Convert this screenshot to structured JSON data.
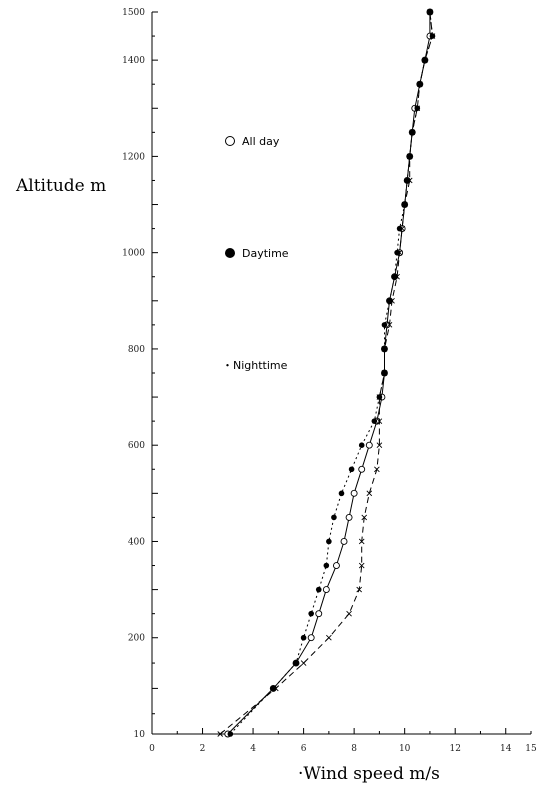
{
  "chart_data": {
    "type": "line",
    "xlabel": "·Wind speed m/s",
    "ylabel": "Altitude m",
    "xlim": [
      0,
      15
    ],
    "xticks": [
      0,
      2,
      4,
      6,
      8,
      10,
      12,
      14,
      15
    ],
    "yticks": [
      10,
      200,
      400,
      600,
      800,
      1000,
      1200,
      1400,
      1500
    ],
    "ytick_labels": [
      "10",
      "200",
      "400",
      "600",
      "800",
      "1000",
      "1200",
      "1400",
      "1500"
    ],
    "grid": false,
    "legend_position": "left",
    "series": [
      {
        "name": "All day",
        "marker": "open-circle",
        "line": "solid",
        "color": "#000000",
        "points": [
          [
            3.0,
            10
          ],
          [
            4.8,
            100
          ],
          [
            5.7,
            150
          ],
          [
            6.3,
            200
          ],
          [
            6.6,
            250
          ],
          [
            6.9,
            300
          ],
          [
            7.3,
            350
          ],
          [
            7.6,
            400
          ],
          [
            7.8,
            450
          ],
          [
            8.0,
            500
          ],
          [
            8.3,
            550
          ],
          [
            8.6,
            600
          ],
          [
            8.9,
            650
          ],
          [
            9.1,
            700
          ],
          [
            9.2,
            750
          ],
          [
            9.2,
            800
          ],
          [
            9.3,
            850
          ],
          [
            9.4,
            900
          ],
          [
            9.6,
            950
          ],
          [
            9.8,
            1000
          ],
          [
            9.9,
            1050
          ],
          [
            10.0,
            1100
          ],
          [
            10.1,
            1150
          ],
          [
            10.2,
            1200
          ],
          [
            10.3,
            1250
          ],
          [
            10.4,
            1300
          ],
          [
            10.6,
            1350
          ],
          [
            10.8,
            1400
          ],
          [
            11.0,
            1450
          ],
          [
            11.0,
            1500
          ]
        ]
      },
      {
        "name": "Daytime",
        "marker": "filled-circle",
        "line": "dotted",
        "color": "#000000",
        "points": [
          [
            3.1,
            10
          ],
          [
            4.8,
            100
          ],
          [
            5.7,
            150
          ],
          [
            6.0,
            200
          ],
          [
            6.3,
            250
          ],
          [
            6.6,
            300
          ],
          [
            6.9,
            350
          ],
          [
            7.0,
            400
          ],
          [
            7.2,
            450
          ],
          [
            7.5,
            500
          ],
          [
            7.9,
            550
          ],
          [
            8.3,
            600
          ],
          [
            8.8,
            650
          ],
          [
            9.0,
            700
          ],
          [
            9.2,
            750
          ],
          [
            9.2,
            800
          ],
          [
            9.2,
            850
          ],
          [
            9.4,
            900
          ],
          [
            9.6,
            950
          ],
          [
            9.7,
            1000
          ],
          [
            9.8,
            1050
          ],
          [
            10.0,
            1100
          ],
          [
            10.1,
            1150
          ],
          [
            10.2,
            1200
          ],
          [
            10.3,
            1250
          ],
          [
            10.5,
            1300
          ],
          [
            10.6,
            1350
          ],
          [
            10.8,
            1400
          ],
          [
            11.1,
            1450
          ],
          [
            11.0,
            1500
          ]
        ]
      },
      {
        "name": "Nighttime",
        "marker": "cross",
        "line": "dashed",
        "color": "#000000",
        "points": [
          [
            2.7,
            10
          ],
          [
            4.9,
            100
          ],
          [
            6.0,
            150
          ],
          [
            7.0,
            200
          ],
          [
            7.8,
            250
          ],
          [
            8.2,
            300
          ],
          [
            8.3,
            350
          ],
          [
            8.3,
            400
          ],
          [
            8.4,
            450
          ],
          [
            8.6,
            500
          ],
          [
            8.9,
            550
          ],
          [
            9.0,
            600
          ],
          [
            9.0,
            650
          ],
          [
            9.0,
            700
          ],
          [
            9.2,
            750
          ],
          [
            9.2,
            800
          ],
          [
            9.4,
            850
          ],
          [
            9.5,
            900
          ],
          [
            9.7,
            950
          ],
          [
            9.8,
            1000
          ],
          [
            9.9,
            1050
          ],
          [
            10.0,
            1100
          ],
          [
            10.2,
            1150
          ],
          [
            10.2,
            1200
          ],
          [
            10.3,
            1250
          ],
          [
            10.5,
            1300
          ],
          [
            10.6,
            1350
          ],
          [
            10.8,
            1400
          ],
          [
            11.1,
            1450
          ],
          [
            11.0,
            1500
          ]
        ]
      }
    ]
  }
}
